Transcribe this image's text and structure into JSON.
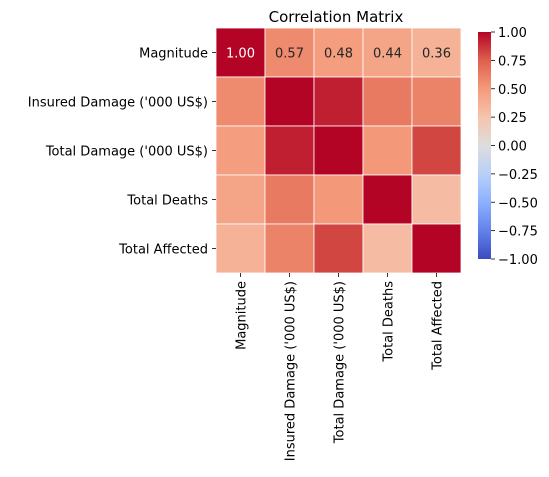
{
  "chart_data": {
    "type": "heatmap",
    "title": "Correlation Matrix",
    "xlabel": "",
    "ylabel": "",
    "row_labels": [
      "Magnitude",
      "Insured Damage ('000 US$)",
      "Total Damage ('000 US$)",
      "Total Deaths",
      "Total Affected"
    ],
    "col_labels": [
      "Magnitude",
      "Insured Damage ('000 US$)",
      "Total Damage ('000 US$)",
      "Total Deaths",
      "Total Affected"
    ],
    "values": [
      [
        1.0,
        0.57,
        0.48,
        0.44,
        0.36
      ],
      [
        0.57,
        1.0,
        0.93,
        0.64,
        0.6
      ],
      [
        0.48,
        0.93,
        1.0,
        0.51,
        0.82
      ],
      [
        0.44,
        0.64,
        0.51,
        1.0,
        0.3
      ],
      [
        0.36,
        0.6,
        0.82,
        0.3,
        1.0
      ]
    ],
    "annotations": [
      [
        1.0,
        0.57,
        0.48,
        0.44,
        0.36
      ]
    ],
    "annotation_labels": [
      "1.00",
      "0.57",
      "0.48",
      "0.44",
      "0.36"
    ],
    "colorscale": "coolwarm",
    "vmin": -1.0,
    "vmax": 1.0,
    "colorbar_ticks": [
      1.0,
      0.75,
      0.5,
      0.25,
      0.0,
      -0.25,
      -0.5,
      -0.75,
      -1.0
    ],
    "colorbar_tick_labels": [
      "1.00",
      "0.75",
      "0.50",
      "0.25",
      "0.00",
      "−0.25",
      "−0.50",
      "−0.75",
      "−1.00"
    ],
    "grid": true,
    "legend": "colorbar-right"
  }
}
